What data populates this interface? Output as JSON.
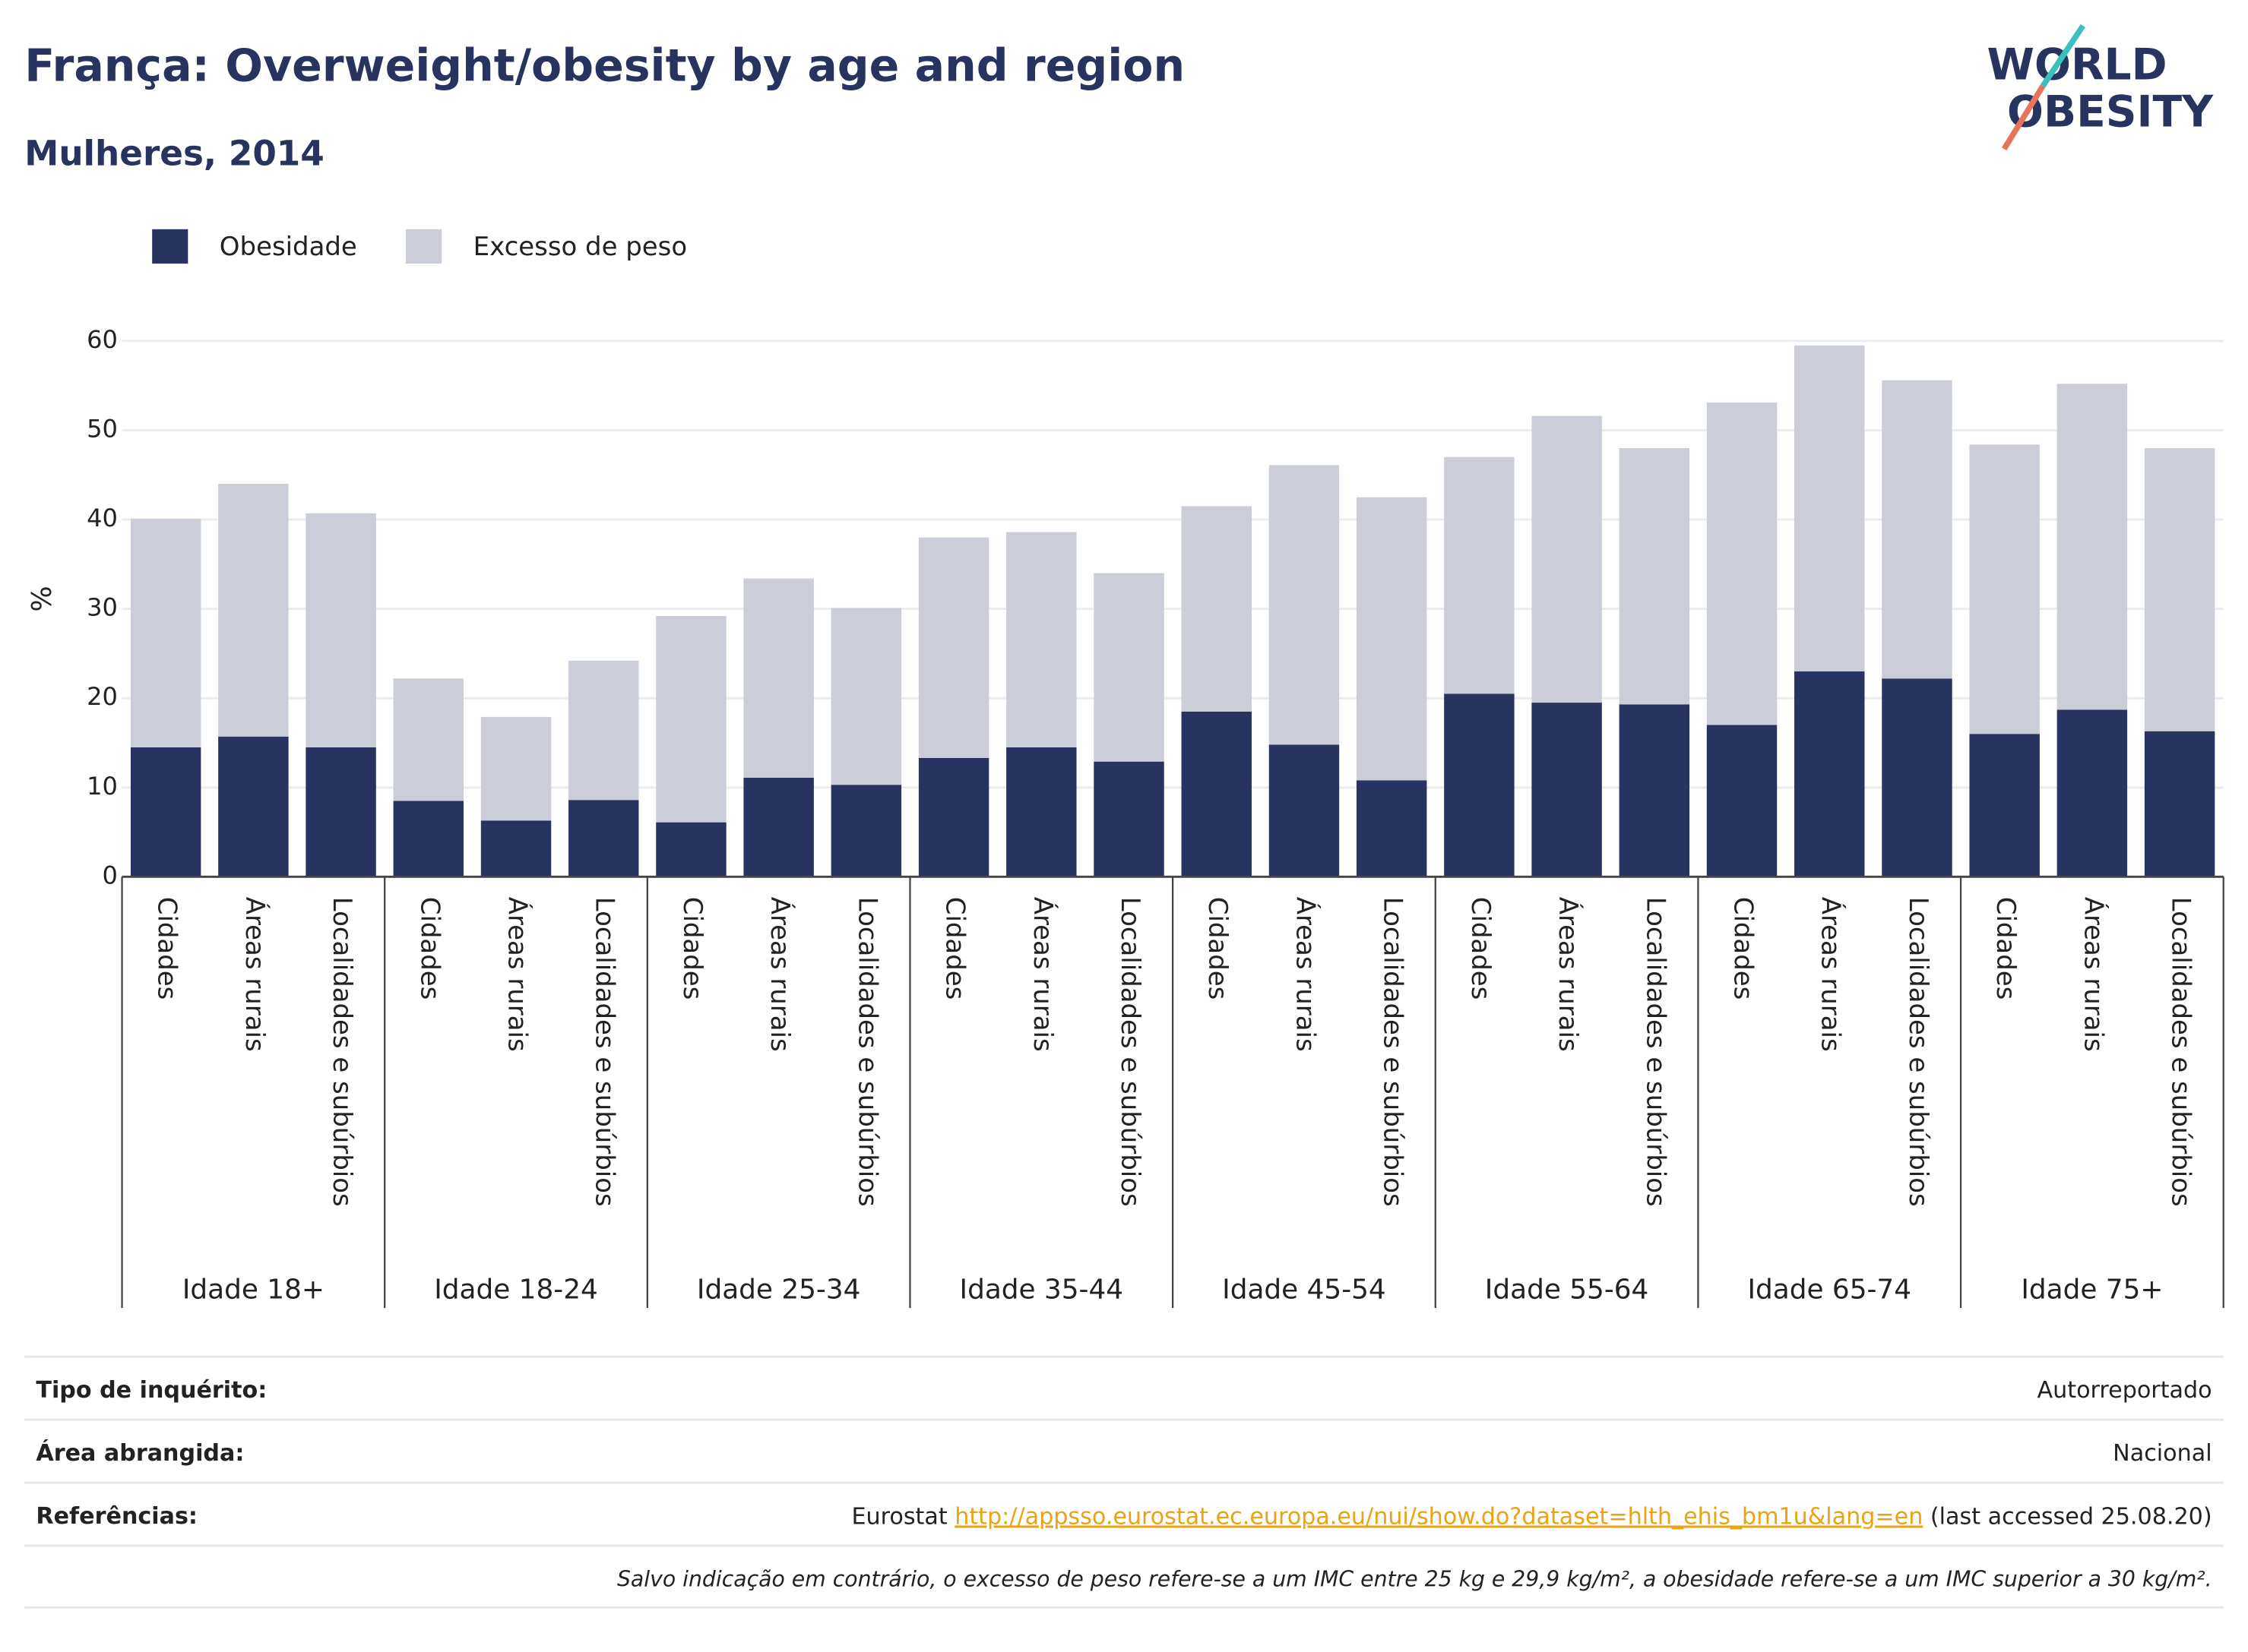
{
  "chart_data": {
    "type": "bar",
    "stacked": true,
    "title": "França: Overweight/obesity by age and region",
    "subtitle": "Mulheres, 2014",
    "logo": [
      "WORLD",
      "OBESITY"
    ],
    "y_label": "%",
    "groups": [
      "Idade 18+",
      "Idade 18-24",
      "Idade 25-34",
      "Idade 35-44",
      "Idade 45-54",
      "Idade 55-64",
      "Idade 65-74",
      "Idade 75+"
    ],
    "categories": [
      "Cidades",
      "Áreas rurais",
      "Localidades e subúrbios",
      "Cidades",
      "Áreas rurais",
      "Localidades e subúrbios",
      "Cidades",
      "Áreas rurais",
      "Localidades e subúrbios",
      "Cidades",
      "Áreas rurais",
      "Localidades e subúrbios",
      "Cidades",
      "Áreas rurais",
      "Localidades e subúrbios",
      "Cidades",
      "Áreas rurais",
      "Localidades e subúrbios",
      "Cidades",
      "Áreas rurais",
      "Localidades e subúrbios",
      "Cidades",
      "Áreas rurais",
      "Localidades e subúrbios"
    ],
    "series": [
      {
        "name": "Obesidade",
        "color": "#283360",
        "values": [
          14.5,
          15.7,
          14.5,
          8.5,
          6.3,
          8.6,
          6.1,
          11.1,
          10.3,
          13.3,
          14.5,
          12.9,
          18.5,
          14.8,
          10.8,
          20.5,
          19.5,
          19.3,
          17.0,
          23.0,
          22.2,
          16.0,
          18.7,
          16.3
        ]
      },
      {
        "name": "Excesso de peso",
        "color": "#cbcdd9",
        "values": [
          25.6,
          28.3,
          26.2,
          13.7,
          11.6,
          15.6,
          23.1,
          22.3,
          19.8,
          24.7,
          24.1,
          21.1,
          23.0,
          31.3,
          31.7,
          26.5,
          32.1,
          28.7,
          36.1,
          36.5,
          33.4,
          32.4,
          36.5,
          31.7
        ]
      }
    ],
    "ylim": [
      0,
      60
    ],
    "yticks": [
      0,
      10,
      20,
      30,
      40,
      50,
      60
    ],
    "grid": true,
    "legend": "top-left"
  },
  "footer": {
    "rows": [
      {
        "label": "Tipo de inquérito:",
        "value": "Autorreportado"
      },
      {
        "label": "Área abrangida:",
        "value": "Nacional"
      },
      {
        "label": "Referências:",
        "source": "Eurostat ",
        "link": "http://appsso.eurostat.ec.europa.eu/nui/show.do?dataset=hlth_ehis_bm1u&lang=en",
        "note": " (last accessed 25.08.20)"
      }
    ],
    "disclaimer": "Salvo indicação em contrário, o excesso de peso refere-se a um IMC entre 25 kg e 29,9 kg/m², a obesidade refere-se a um IMC superior a 30 kg/m²."
  }
}
